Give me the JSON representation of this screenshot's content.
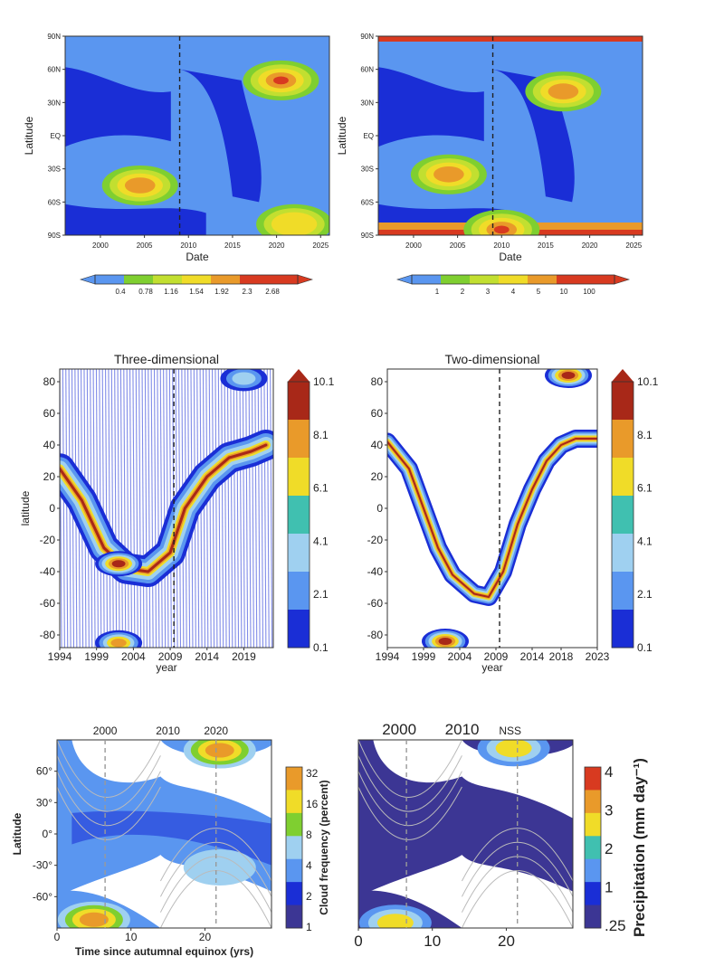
{
  "colors": {
    "navy": "#1a2ed6",
    "sky": "#5a96f0",
    "green": "#7fcf30",
    "lime": "#c2df30",
    "yellow": "#f0dc28",
    "orange": "#e99a2a",
    "red": "#d83a20",
    "dark_red": "#a82818",
    "white": "#ffffff",
    "light_blue": "#9fd0f0",
    "teal": "#40c0b0",
    "purple": "#3c3694"
  },
  "chart_data": [
    {
      "type": "heatmap",
      "xlabel": "Date",
      "ylabel": "Latitude",
      "xlim": [
        1996,
        2026
      ],
      "x_ticks": [
        "2000",
        "2005",
        "2010",
        "2015",
        "2020",
        "2025"
      ],
      "y_ticks": [
        "90N",
        "60N",
        "30N",
        "EQ",
        "30S",
        "60S",
        "90S"
      ],
      "colorbar_ticks": [
        "0.4",
        "0.78",
        "1.16",
        "1.54",
        "1.92",
        "2.3",
        "2.68"
      ],
      "marker_year": 2009,
      "features": [
        {
          "x": 2004.5,
          "lat": -45,
          "level": "orange"
        },
        {
          "x": 2020.5,
          "lat": 50,
          "level": "red"
        },
        {
          "x": 2022,
          "lat": -80,
          "level": "yellow"
        }
      ]
    },
    {
      "type": "heatmap",
      "xlabel": "Date",
      "ylabel": "Latitude",
      "xlim": [
        1996,
        2026
      ],
      "x_ticks": [
        "2000",
        "2005",
        "2010",
        "2015",
        "2020",
        "2025"
      ],
      "y_ticks": [
        "90N",
        "60N",
        "30N",
        "EQ",
        "30S",
        "60S",
        "90S"
      ],
      "colorbar_ticks": [
        "1",
        "2",
        "3",
        "4",
        "5",
        "10",
        "100"
      ],
      "marker_year": 2009,
      "features": [
        {
          "x": 2004,
          "lat": -35,
          "level": "orange"
        },
        {
          "x": 2017,
          "lat": 40,
          "level": "orange"
        },
        {
          "x": 2010,
          "lat": -85,
          "level": "red"
        }
      ]
    },
    {
      "type": "heatmap",
      "title": "Three-dimensional",
      "xlabel": "year",
      "ylabel": "latitude",
      "xlim": [
        1994,
        2023
      ],
      "ylim": [
        -88,
        88
      ],
      "x_ticks": [
        "1994",
        "1999",
        "2004",
        "2009",
        "2014",
        "2019"
      ],
      "y_ticks": [
        "80",
        "60",
        "40",
        "20",
        "0",
        "-20",
        "-40",
        "-60",
        "-80"
      ],
      "colorbar_ticks": [
        "10.1",
        "8.1",
        "6.1",
        "4.1",
        "2.1",
        "0.1"
      ],
      "marker_year": 2009.5,
      "band": [
        [
          1994,
          25
        ],
        [
          1997,
          5
        ],
        [
          2000,
          -25
        ],
        [
          2003,
          -38
        ],
        [
          2006,
          -40
        ],
        [
          2009,
          -28
        ],
        [
          2011,
          0
        ],
        [
          2014,
          20
        ],
        [
          2017,
          32
        ],
        [
          2020,
          36
        ],
        [
          2022,
          40
        ]
      ],
      "peaks": [
        {
          "x": 2002,
          "lat": -35,
          "level": "dark_red"
        },
        {
          "x": 2002,
          "lat": -85,
          "level": "orange"
        },
        {
          "x": 2019,
          "lat": 82,
          "level": "light_blue"
        }
      ]
    },
    {
      "type": "heatmap",
      "title": "Two-dimensional",
      "xlabel": "year",
      "ylabel": "latitude",
      "xlim": [
        1994,
        2023
      ],
      "ylim": [
        -88,
        88
      ],
      "x_ticks": [
        "1994",
        "1999",
        "2004",
        "2009",
        "2014",
        "2018",
        "2023"
      ],
      "y_ticks": [
        "80",
        "60",
        "40",
        "20",
        "0",
        "-20",
        "-40",
        "-60",
        "-80"
      ],
      "colorbar_ticks": [
        "10.1",
        "8.1",
        "6.1",
        "4.1",
        "2.1",
        "0.1"
      ],
      "marker_year": 2009.5,
      "band": [
        [
          1994,
          42
        ],
        [
          1997,
          25
        ],
        [
          1999,
          0
        ],
        [
          2001,
          -25
        ],
        [
          2003,
          -42
        ],
        [
          2006,
          -54
        ],
        [
          2008,
          -56
        ],
        [
          2010,
          -40
        ],
        [
          2012,
          -10
        ],
        [
          2014,
          12
        ],
        [
          2016,
          30
        ],
        [
          2018,
          40
        ],
        [
          2020,
          44
        ],
        [
          2023,
          44
        ]
      ],
      "peaks": [
        {
          "x": 2002,
          "lat": -84,
          "level": "dark_red"
        },
        {
          "x": 2019,
          "lat": 84,
          "level": "dark_red"
        }
      ]
    },
    {
      "type": "heatmap",
      "xlabel": "Time since autumnal equinox (yrs)",
      "ylabel": "Latitude",
      "xlim": [
        0,
        29
      ],
      "ylim": [
        -90,
        90
      ],
      "x_ticks": [
        "0",
        "10",
        "20"
      ],
      "top_ticks": [
        "2000",
        "2010",
        "2020"
      ],
      "y_ticks": [
        "60°",
        "30°",
        "0°",
        "-30°",
        "-60°"
      ],
      "colorbar_label": "Cloud frequency (percent)",
      "colorbar_ticks": [
        "32",
        "16",
        "8",
        "4",
        "2",
        "1"
      ],
      "dashed_years": [
        6.5,
        21.5
      ],
      "features": [
        {
          "x": 22,
          "lat": 80,
          "level": "orange"
        },
        {
          "x": 5,
          "lat": -82,
          "level": "orange"
        },
        {
          "x": 22,
          "lat": -32,
          "level": "light_blue"
        }
      ]
    },
    {
      "type": "heatmap",
      "xlabel": "",
      "ylabel": "",
      "xlim": [
        0,
        29
      ],
      "ylim": [
        -90,
        90
      ],
      "x_ticks": [
        "0",
        "10",
        "20"
      ],
      "top_ticks": [
        "2000",
        "2010",
        "NSS"
      ],
      "colorbar_label": "Precipitation (mm day⁻¹)",
      "colorbar_ticks": [
        "4",
        "3",
        "2",
        "1",
        ".25"
      ],
      "dashed_years": [
        6.5,
        21.5
      ],
      "features": [
        {
          "x": 21,
          "lat": 82,
          "level": "yellow"
        },
        {
          "x": 5,
          "lat": -85,
          "level": "yellow"
        }
      ]
    }
  ]
}
